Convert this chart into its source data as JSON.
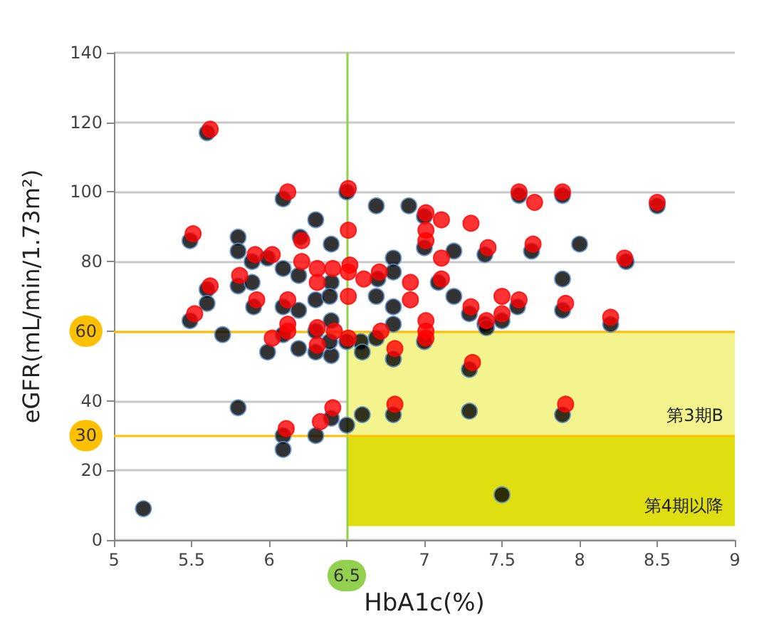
{
  "chart_data": {
    "type": "scatter",
    "xlabel": "HbA1c(%)",
    "ylabel": "eGFR(mL/min/1.73m²)",
    "xlim": [
      5,
      9
    ],
    "ylim": [
      0,
      140
    ],
    "xticks": [
      5,
      5.5,
      6,
      {
        "value": 6.5,
        "label": null
      },
      7,
      7.5,
      8,
      8.5,
      9
    ],
    "yticks": [
      0,
      20,
      40,
      {
        "value": 60,
        "label": null
      },
      80,
      100,
      120,
      140
    ],
    "grid": "y",
    "marker": "circle",
    "ref_lines": [
      {
        "axis": "x",
        "value": 6.5,
        "label": "6.5",
        "color": "#92d050"
      },
      {
        "axis": "y",
        "value": 60,
        "label": "60",
        "color": "#ffc000"
      },
      {
        "axis": "y",
        "value": 30,
        "label": "30",
        "color": "#ffc000"
      }
    ],
    "bands": [
      {
        "axis": "y",
        "from": 30,
        "to": 60,
        "label": "第3期B",
        "color": "#f4f48e"
      },
      {
        "axis": "y",
        "from": 4,
        "to": 30,
        "label": "第4期以降",
        "color": "#dede10"
      }
    ],
    "series": [
      {
        "color": "#000000",
        "x": [
          5.6,
          6.09,
          6.3,
          5.49,
          5.8,
          5.8,
          6.2,
          6.4,
          5.89,
          5.99,
          6.09,
          6.19,
          5.8,
          5.89,
          5.6,
          5.6,
          5.9,
          6.09,
          6.19,
          6.3,
          6.4,
          6.39,
          5.49,
          5.7,
          6.09,
          6.3,
          6.4,
          6.69,
          6.9,
          7.0,
          7.0,
          7.19,
          7.39,
          7.69,
          8.0,
          6.8,
          6.8,
          7.09,
          6.7,
          7.89,
          7.19,
          6.69,
          6.8,
          6.8,
          7.29,
          7.39,
          7.5,
          7.89,
          7.6,
          8.2,
          6.59,
          6.69,
          6.6,
          5.99,
          6.19,
          6.3,
          6.4,
          6.39,
          6.8,
          5.8,
          6.4,
          6.5,
          6.6,
          6.8,
          6.3,
          6.09,
          6.09,
          5.19,
          7.0,
          7.29,
          7.29,
          7.89,
          6.5,
          7.4,
          7.5,
          8.3,
          8.5,
          7.61,
          7.89,
          6.5
        ],
        "values": [
          117,
          98,
          92,
          86,
          87,
          83,
          87,
          85,
          80,
          81,
          78,
          76,
          73,
          74,
          72,
          68,
          67,
          67,
          66,
          69,
          74,
          70,
          63,
          59,
          59,
          60,
          63,
          96,
          96,
          93,
          84,
          83,
          82,
          83,
          85,
          81,
          77,
          74,
          75,
          75,
          70,
          70,
          67,
          62,
          65,
          62,
          63,
          66,
          67,
          62,
          57,
          58,
          54,
          54,
          55,
          54,
          53,
          57,
          52,
          38,
          35,
          33,
          36,
          36,
          30,
          30,
          26,
          9,
          57,
          49,
          37,
          36,
          57,
          61,
          13,
          80,
          96,
          99,
          99,
          100
        ]
      },
      {
        "color": "#ff0000",
        "x": [
          5.62,
          6.12,
          5.51,
          6.21,
          5.91,
          6.02,
          6.21,
          6.31,
          6.41,
          5.81,
          6.31,
          5.62,
          5.92,
          6.12,
          5.52,
          6.12,
          6.12,
          6.31,
          6.42,
          6.02,
          6.51,
          7.61,
          7.89,
          7.71,
          8.5,
          7.01,
          7.11,
          7.3,
          6.51,
          7.01,
          7.01,
          7.41,
          7.7,
          8.29,
          7.11,
          6.52,
          6.51,
          6.61,
          6.71,
          6.91,
          7.11,
          6.51,
          6.91,
          7.3,
          7.5,
          7.61,
          7.91,
          7.4,
          7.5,
          8.2,
          7.01,
          7.01,
          7.01,
          6.51,
          6.72,
          6.81,
          7.31,
          6.41,
          6.33,
          6.11,
          6.81,
          7.91,
          6.31
        ],
        "values": [
          118,
          100,
          88,
          86,
          82,
          82,
          80,
          78,
          78,
          76,
          74,
          73,
          69,
          69,
          65,
          62,
          60,
          61,
          60,
          58,
          101,
          100,
          100,
          97,
          97,
          94,
          92,
          91,
          89,
          89,
          86,
          84,
          85,
          81,
          81,
          79,
          77,
          75,
          77,
          74,
          75,
          70,
          69,
          67,
          70,
          69,
          68,
          63,
          65,
          64,
          63,
          60,
          58,
          58,
          60,
          55,
          51,
          38,
          34,
          32,
          39,
          39,
          56
        ]
      }
    ]
  }
}
